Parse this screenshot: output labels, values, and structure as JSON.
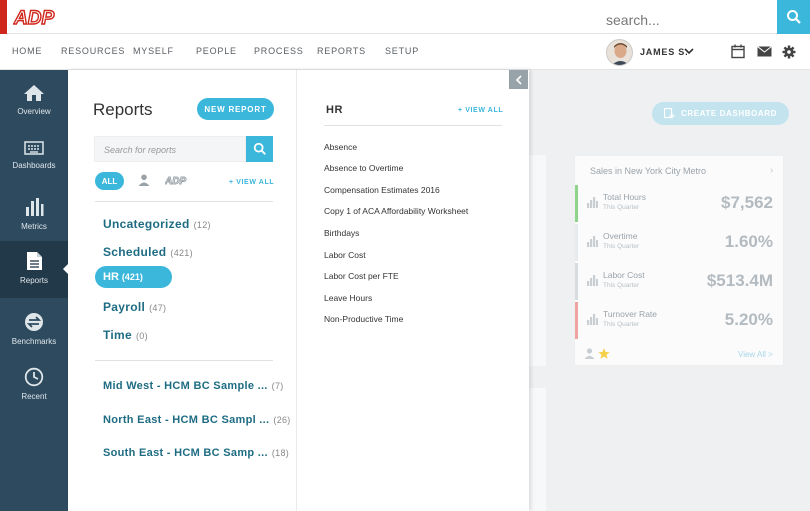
{
  "header": {
    "logo_text": "ADP",
    "search_placeholder": "search..."
  },
  "nav": {
    "items": [
      "HOME",
      "RESOURCES",
      "MYSELF",
      "PEOPLE",
      "PROCESS",
      "REPORTS",
      "SETUP"
    ]
  },
  "user": {
    "name": "JAMES S."
  },
  "sidebar": {
    "items": [
      {
        "label": "Overview",
        "icon": "house-icon"
      },
      {
        "label": "Dashboards",
        "icon": "keyboard-icon"
      },
      {
        "label": "Metrics",
        "icon": "bar-chart-icon"
      },
      {
        "label": "Reports",
        "icon": "document-icon"
      },
      {
        "label": "Benchmarks",
        "icon": "exchange-icon"
      },
      {
        "label": "Recent",
        "icon": "clock-icon"
      }
    ]
  },
  "reports_panel": {
    "title": "Reports",
    "new_report_label": "NEW REPORT",
    "search_placeholder": "Search for reports",
    "filter_all_label": "ALL",
    "view_all_label": "+ VIEW ALL",
    "categories": [
      {
        "name": "Uncategorized",
        "count": "(12)"
      },
      {
        "name": "Scheduled",
        "count": "(421)"
      },
      {
        "name": "HR",
        "count": "(421)"
      },
      {
        "name": "Payroll",
        "count": "(47)"
      },
      {
        "name": "Time",
        "count": "(0)"
      }
    ],
    "groups": [
      {
        "name": "Mid West - HCM BC Sample ...",
        "count": "(7)"
      },
      {
        "name": "North East - HCM BC Sampl ...",
        "count": "(26)"
      },
      {
        "name": "South East - HCM BC Samp ...",
        "count": "(18)"
      }
    ]
  },
  "hr_column": {
    "title": "HR",
    "view_all_label": "+ VIEW ALL",
    "reports": [
      "Absence",
      "Absence to Overtime",
      "Compensation Estimates 2016",
      "Copy 1 of ACA Affordability Worksheet",
      "Birthdays",
      "Labor Cost",
      "Labor Cost per FTE",
      "Leave Hours",
      "Non-Productive Time"
    ]
  },
  "dashboard": {
    "create_label": "CREATE DASHBOARD",
    "kpi_card": {
      "title": "Sales in New York City Metro",
      "view_all": "View All >",
      "rows": [
        {
          "name": "Total Hours",
          "sub": "This Quarter",
          "value": "$7,562",
          "color": "#8fd48a"
        },
        {
          "name": "Overtime",
          "sub": "This Quarter",
          "value": "1.60%",
          "color": "#e8ebed"
        },
        {
          "name": "Labor Cost",
          "sub": "This Quarter",
          "value": "$513.4M",
          "color": "#d9dcdf"
        },
        {
          "name": "Turnover Rate",
          "sub": "This Quarter",
          "value": "5.20%",
          "color": "#f0a3a3"
        }
      ]
    }
  }
}
